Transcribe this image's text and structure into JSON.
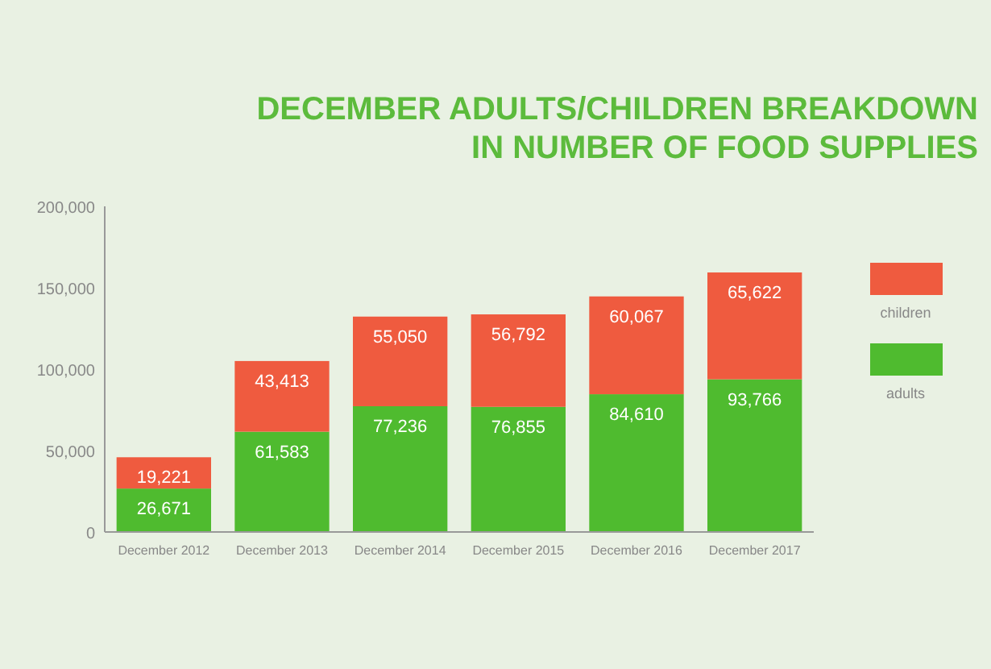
{
  "chart_data": {
    "type": "bar",
    "title": "DECEMBER ADULTS/CHILDREN BREAKDOWN\nIN NUMBER OF FOOD SUPPLIES",
    "categories": [
      "December 2012",
      "December 2013",
      "December 2014",
      "December 2015",
      "December 2016",
      "December 2017"
    ],
    "series": [
      {
        "name": "adults",
        "color": "#4fbb2f",
        "values": [
          26671,
          61583,
          77236,
          76855,
          84610,
          93766
        ],
        "value_labels": [
          "26,671",
          "61,583",
          "77,236",
          "76,855",
          "84,610",
          "93,766"
        ]
      },
      {
        "name": "children",
        "color": "#ef5b3f",
        "values": [
          19221,
          43413,
          55050,
          56792,
          60067,
          65622
        ],
        "value_labels": [
          "19,221",
          "43,413",
          "55,050",
          "56,792",
          "60,067",
          "65,622"
        ]
      }
    ],
    "stacked": true,
    "legend": "right",
    "ylim": [
      0,
      200000
    ],
    "yticks": [
      {
        "value": 0,
        "label": "0"
      },
      {
        "value": 50000,
        "label": "50,000"
      },
      {
        "value": 100000,
        "label": "100,000"
      },
      {
        "value": 150000,
        "label": "150,000"
      },
      {
        "value": 200000,
        "label": "200,000"
      }
    ]
  }
}
